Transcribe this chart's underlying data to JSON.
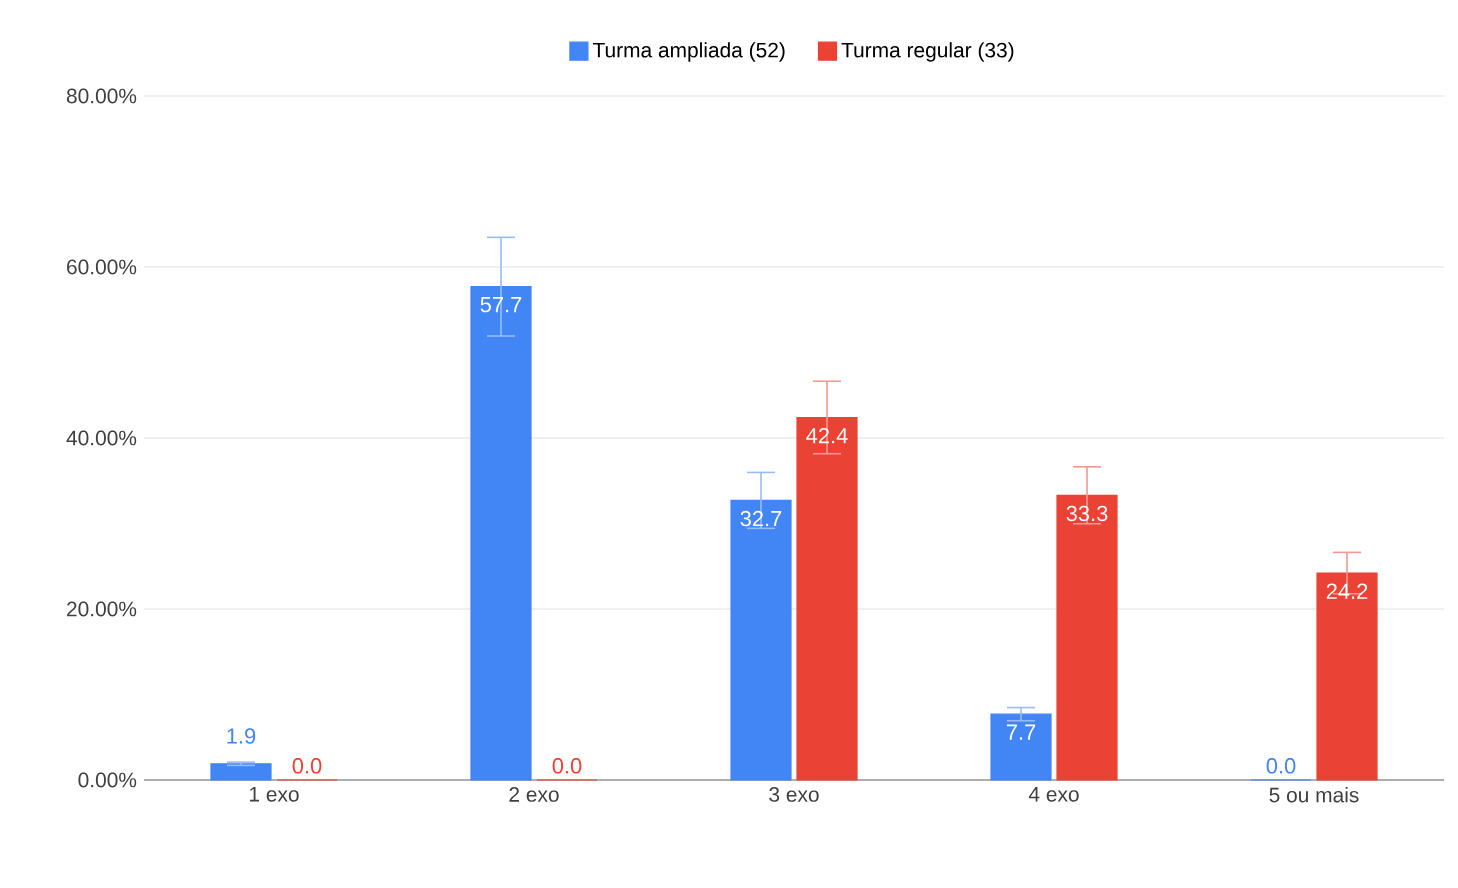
{
  "chart_data": {
    "type": "bar",
    "categories": [
      "1 exo",
      "2 exo",
      "3 exo",
      "4 exo",
      "5 ou mais"
    ],
    "series": [
      {
        "name": "Turma ampliada (52)",
        "color": "#4285f4",
        "values": [
          1.9,
          57.7,
          32.7,
          7.7,
          0.0
        ],
        "errors": [
          0.19,
          5.77,
          3.27,
          0.77,
          null
        ],
        "value_labels": [
          "1.9",
          "57.7",
          "32.7",
          "7.7",
          "0.0"
        ]
      },
      {
        "name": "Turma regular (33)",
        "color": "#ea4335",
        "values": [
          0.0,
          0.0,
          42.4,
          33.3,
          24.2
        ],
        "errors": [
          null,
          null,
          4.24,
          3.33,
          2.42
        ],
        "value_labels": [
          "0.0",
          "0.0",
          "42.4",
          "33.3",
          "24.2"
        ]
      }
    ],
    "ylim": [
      0,
      80
    ],
    "yticks": [
      {
        "value": 0,
        "label": "0.00%"
      },
      {
        "value": 20,
        "label": "20.00%"
      },
      {
        "value": 40,
        "label": "40.00%"
      },
      {
        "value": 60,
        "label": "60.00%"
      },
      {
        "value": 80,
        "label": "80.00%"
      }
    ],
    "grid": "y",
    "legend": "top"
  }
}
